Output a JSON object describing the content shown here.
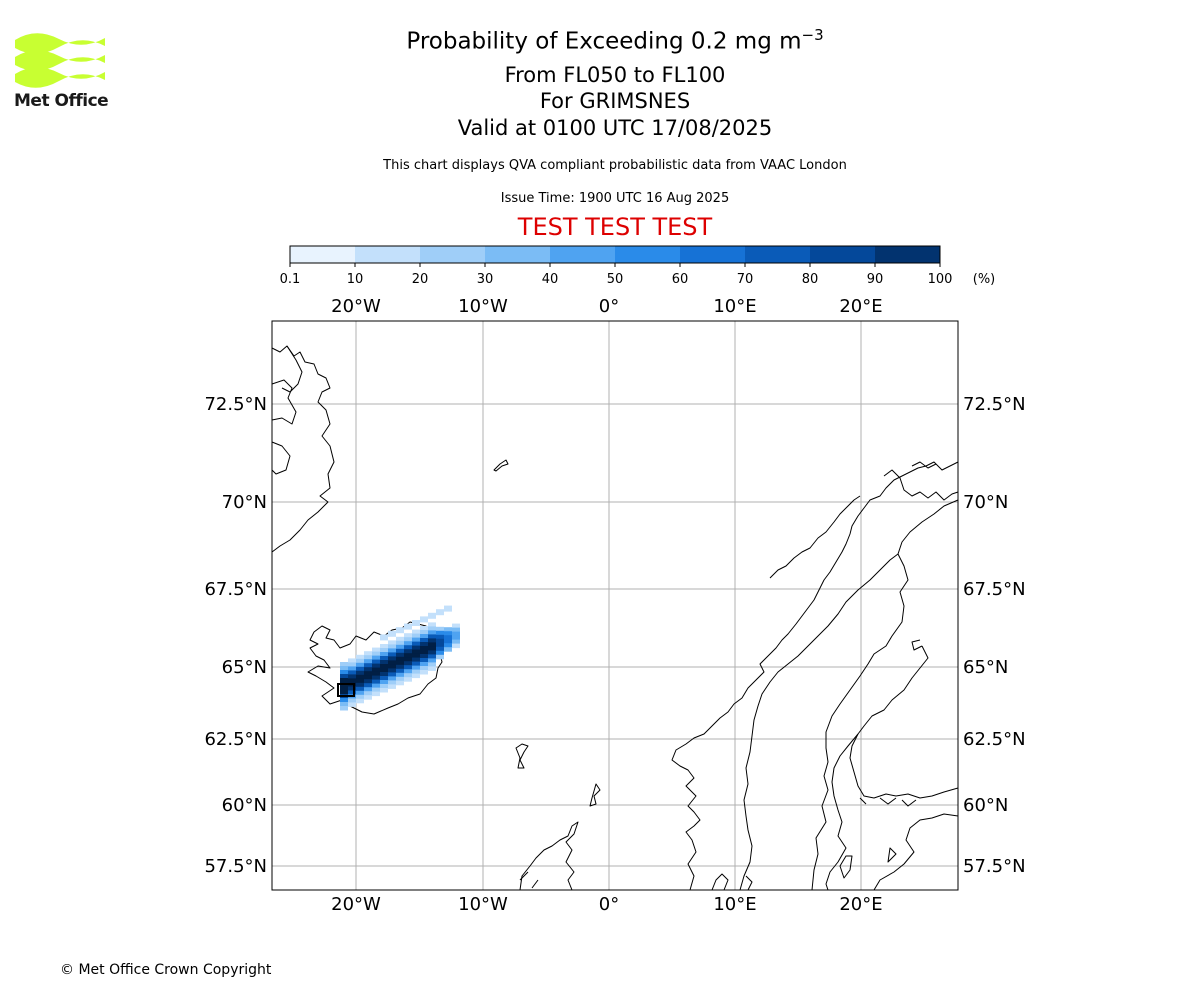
{
  "logo": {
    "text": "Met Office",
    "wave_color": "#c8ff32"
  },
  "title": {
    "line1_text": "Probability of Exceeding 0.2 mg m",
    "line1_exponent": "−3",
    "line2": "From FL050 to FL100",
    "line3": "For GRIMSNES",
    "line4": "Valid at 0100 UTC 17/08/2025"
  },
  "subtitle": "This chart displays QVA compliant probabilistic data from VAAC London",
  "issue_time": "Issue Time: 1900 UTC 16 Aug 2025",
  "test_banner": {
    "text": "TEST TEST TEST",
    "color": "#dd0000"
  },
  "colorbar": {
    "ticks": [
      "0.1",
      "10",
      "20",
      "30",
      "40",
      "50",
      "60",
      "70",
      "80",
      "90",
      "100"
    ],
    "unit": "(%)",
    "colors": [
      "#e8f3fe",
      "#c3e0fb",
      "#9fcef8",
      "#7bbcf5",
      "#4fa3f1",
      "#2a8be9",
      "#1672d6",
      "#0a5bb8",
      "#04489a",
      "#02336f",
      "#011f45"
    ]
  },
  "map": {
    "lon_labels": [
      "20°W",
      "10°W",
      "0°",
      "10°E",
      "20°E"
    ],
    "lat_labels": [
      "72.5°N",
      "70°N",
      "67.5°N",
      "65°N",
      "62.5°N",
      "60°N",
      "57.5°N"
    ],
    "source_marker": "volcano-location-marker"
  },
  "copyright": "© Met Office Crown Copyright"
}
